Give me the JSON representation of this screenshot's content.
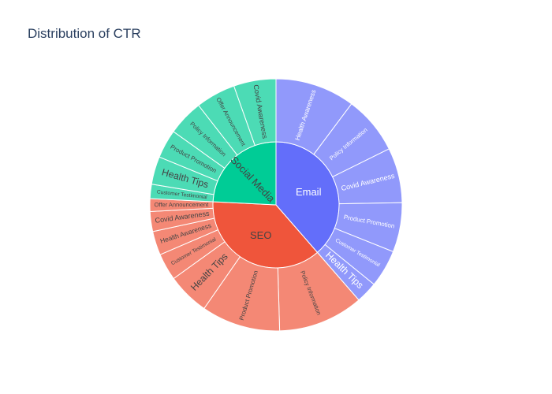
{
  "chart_data": {
    "type": "sunburst",
    "title": "Distribution of CTR",
    "colors": {
      "Email": "#636efa",
      "SEO": "#ef553b",
      "Social Media": "#00cc96",
      "label_light": "#ffffff",
      "label_dark": "#444444"
    },
    "series": [
      {
        "name": "Email",
        "children": [
          {
            "name": "Health Awareness",
            "value": 10.0
          },
          {
            "name": "Policy Information",
            "value": 7.3
          },
          {
            "name": "Covid Awareness",
            "value": 6.9
          },
          {
            "name": "Product Promotion",
            "value": 6.2
          },
          {
            "name": "Customer Testimonial",
            "value": 4.7
          },
          {
            "name": "Health Tips",
            "value": 2.7
          }
        ]
      },
      {
        "name": "SEO",
        "children": [
          {
            "name": "Policy Information",
            "value": 10.7
          },
          {
            "name": "Product Promotion",
            "value": 9.9
          },
          {
            "name": "Health Tips",
            "value": 5.3
          },
          {
            "name": "Customer Testimonial",
            "value": 3.4
          },
          {
            "name": "Health Awareness",
            "value": 3.0
          },
          {
            "name": "Covid Awareness",
            "value": 2.5
          },
          {
            "name": "Offer Announcement",
            "value": 1.6
          }
        ]
      },
      {
        "name": "Social Media",
        "children": [
          {
            "name": "Customer Testimonial",
            "value": 1.8
          },
          {
            "name": "Health Tips",
            "value": 3.5
          },
          {
            "name": "Product Promotion",
            "value": 3.6
          },
          {
            "name": "Policy Information",
            "value": 4.5
          },
          {
            "name": "Offer Announcement",
            "value": 5.0
          },
          {
            "name": "Covid Awareness",
            "value": 5.3
          }
        ]
      }
    ]
  }
}
